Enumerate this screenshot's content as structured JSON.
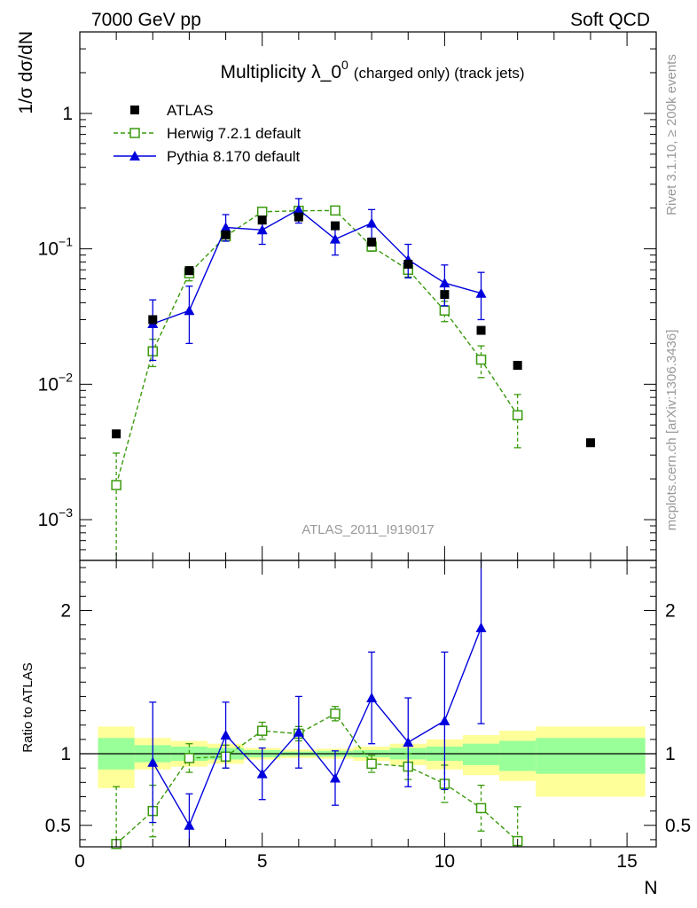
{
  "header": {
    "left": "7000 GeV pp",
    "right": "Soft QCD"
  },
  "side_text": {
    "rivet": "Rivet 3.1.10, ≥ 200k events",
    "mcplots": "mcplots.cern.ch [arXiv:1306.3436]"
  },
  "chart_data": [
    {
      "type": "scatter",
      "panel": "main",
      "title": "Multiplicity λ_0^0 (charged only) (track jets)",
      "title_main": "Multiplicity λ_0",
      "title_sup": "0",
      "title_tail": "(charged only) (track jets)",
      "ylabel": "1/σ dσ/dN",
      "xlabel": "N",
      "yscale": "log",
      "ylim": [
        0.0005,
        4
      ],
      "xlim": [
        0,
        15.8
      ],
      "watermark": "ATLAS_2011_I919017",
      "legend_position": "top-left",
      "y_tick_labels": [
        {
          "value": 1,
          "base": "1",
          "exp": ""
        },
        {
          "value": 0.1,
          "base": "10",
          "exp": "−1"
        },
        {
          "value": 0.01,
          "base": "10",
          "exp": "−2"
        },
        {
          "value": 0.001,
          "base": "10",
          "exp": "−3"
        }
      ],
      "series": [
        {
          "name": "ATLAS",
          "marker": "filled-square",
          "color": "#000000",
          "x": [
            1,
            2,
            3,
            4,
            5,
            6,
            7,
            8,
            9,
            10,
            11,
            12,
            14
          ],
          "y": [
            0.0043,
            0.03,
            0.069,
            0.127,
            0.163,
            0.172,
            0.148,
            0.112,
            0.077,
            0.046,
            0.025,
            0.0138,
            0.0037
          ]
        },
        {
          "name": "Herwig 7.2.1 default",
          "marker": "open-square",
          "line": "dashed",
          "color": "#3a9a0e",
          "x": [
            1,
            2,
            3,
            4,
            5,
            6,
            7,
            8,
            9,
            10,
            11,
            12
          ],
          "y": [
            0.0018,
            0.0175,
            0.066,
            0.124,
            0.188,
            0.191,
            0.192,
            0.104,
            0.07,
            0.035,
            0.0152,
            0.0059
          ],
          "err_low": [
            0.0018,
            0.004,
            0.008,
            0.01,
            0.01,
            0.01,
            0.01,
            0.008,
            0.008,
            0.006,
            0.004,
            0.0025
          ],
          "err_high": [
            0.0013,
            0.004,
            0.008,
            0.01,
            0.01,
            0.01,
            0.01,
            0.008,
            0.008,
            0.006,
            0.004,
            0.0025
          ]
        },
        {
          "name": "Pythia 8.170 default",
          "marker": "filled-triangle",
          "line": "solid",
          "color": "#0000dd",
          "x": [
            2,
            3,
            4,
            5,
            6,
            7,
            8,
            9,
            10,
            11
          ],
          "y": [
            0.028,
            0.035,
            0.144,
            0.138,
            0.195,
            0.118,
            0.155,
            0.083,
            0.056,
            0.047
          ],
          "err_low": [
            0.013,
            0.015,
            0.03,
            0.03,
            0.04,
            0.028,
            0.035,
            0.022,
            0.018,
            0.017
          ],
          "err_high": [
            0.014,
            0.018,
            0.035,
            0.035,
            0.04,
            0.03,
            0.04,
            0.025,
            0.02,
            0.02
          ]
        }
      ]
    },
    {
      "type": "scatter",
      "panel": "ratio",
      "ylabel": "Ratio to ATLAS",
      "xlabel": "N",
      "ylim": [
        0.35,
        2.35
      ],
      "xlim": [
        0,
        15.8
      ],
      "y_ticks": [
        0.5,
        1,
        2
      ],
      "y_tick_labels": [
        "0.5",
        "1",
        "2"
      ],
      "x_ticks": [
        0,
        5,
        10,
        15
      ],
      "x_tick_labels": [
        "0",
        "5",
        "10",
        "15"
      ],
      "uncertainty_bands": {
        "bins": [
          [
            0.5,
            1.5
          ],
          [
            1.5,
            2.5
          ],
          [
            2.5,
            3.5
          ],
          [
            3.5,
            4.5
          ],
          [
            4.5,
            5.5
          ],
          [
            5.5,
            6.5
          ],
          [
            6.5,
            7.5
          ],
          [
            7.5,
            8.5
          ],
          [
            8.5,
            9.5
          ],
          [
            9.5,
            10.5
          ],
          [
            10.5,
            11.5
          ],
          [
            11.5,
            12.5
          ],
          [
            12.5,
            15.5
          ]
        ],
        "yellow_low": [
          0.76,
          0.89,
          0.91,
          0.93,
          0.96,
          0.97,
          0.965,
          0.95,
          0.92,
          0.89,
          0.85,
          0.81,
          0.7
        ],
        "yellow_high": [
          1.19,
          1.11,
          1.09,
          1.07,
          1.04,
          1.03,
          1.035,
          1.05,
          1.07,
          1.1,
          1.13,
          1.16,
          1.19
        ],
        "green_low": [
          0.89,
          0.94,
          0.95,
          0.96,
          0.975,
          0.985,
          0.98,
          0.975,
          0.96,
          0.95,
          0.92,
          0.88,
          0.86
        ],
        "green_high": [
          1.11,
          1.06,
          1.05,
          1.04,
          1.025,
          1.015,
          1.02,
          1.025,
          1.04,
          1.05,
          1.07,
          1.09,
          1.11
        ],
        "yellow_color": "#ffff99",
        "green_color": "#99ff99"
      },
      "series": [
        {
          "name": "Herwig 7.2.1 default",
          "marker": "open-square",
          "line": "dashed",
          "color": "#3a9a0e",
          "x": [
            1,
            2,
            3,
            4,
            5,
            6,
            7,
            8,
            9,
            10,
            11,
            12
          ],
          "y": [
            0.37,
            0.6,
            0.97,
            0.98,
            1.16,
            1.14,
            1.28,
            0.93,
            0.91,
            0.79,
            0.62,
            0.39
          ],
          "err_low": [
            0.4,
            0.18,
            0.1,
            0.08,
            0.06,
            0.05,
            0.05,
            0.06,
            0.09,
            0.13,
            0.16,
            0.24
          ],
          "err_high": [
            0.4,
            0.18,
            0.1,
            0.08,
            0.06,
            0.05,
            0.05,
            0.06,
            0.09,
            0.13,
            0.16,
            0.24
          ]
        },
        {
          "name": "Pythia 8.170 default",
          "marker": "filled-triangle",
          "line": "solid",
          "color": "#0000dd",
          "x": [
            2,
            3,
            4,
            5,
            6,
            7,
            8,
            9,
            10,
            11
          ],
          "y": [
            0.94,
            0.5,
            1.13,
            0.86,
            1.15,
            0.83,
            1.39,
            1.08,
            1.23,
            1.88
          ],
          "err_low": [
            0.42,
            0.22,
            0.23,
            0.18,
            0.25,
            0.19,
            0.32,
            0.31,
            0.48,
            0.67
          ],
          "err_high": [
            0.42,
            0.22,
            0.23,
            0.18,
            0.25,
            0.19,
            0.32,
            0.31,
            0.48,
            0.67
          ]
        }
      ]
    }
  ]
}
